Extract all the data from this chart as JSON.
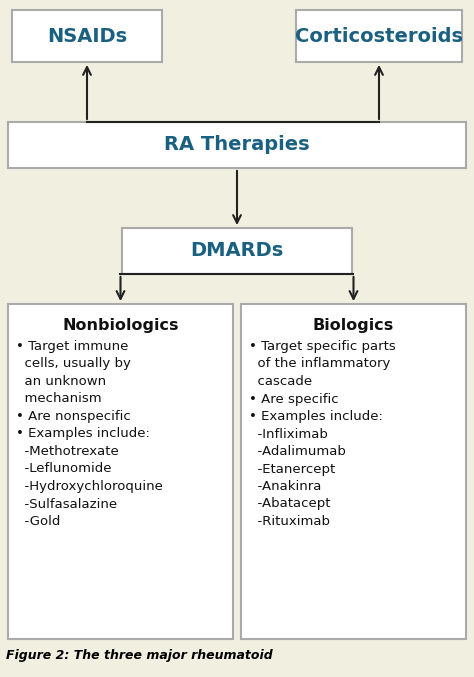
{
  "bg_color": "#f0efe0",
  "box_fill_nsaids": "#ffffff",
  "box_fill_cortico": "#ffffff",
  "box_fill_ra": "#ffffff",
  "box_fill_dmards": "#ffffff",
  "box_fill_nonbio": "#ffffff",
  "box_fill_bio": "#ffffff",
  "box_edge_color": "#aaaaaa",
  "text_color_title": "#1a6080",
  "text_color_body": "#111111",
  "arrow_color": "#222222",
  "nsaids_label": "NSAIDs",
  "cortico_label": "Corticosteroids",
  "ra_label": "RA Therapies",
  "dmards_label": "DMARDs",
  "nonbio_label": "Nonbiologics",
  "bio_label": "Biologics",
  "nonbio_lines": [
    "• Target immune",
    "  cells, usually by",
    "  an unknown",
    "  mechanism",
    "• Are nonspecific",
    "• Examples include:",
    "  -Methotrexate",
    "  -Leflunomide",
    "  -Hydroxychloroquine",
    "  -Sulfasalazine",
    "  -Gold"
  ],
  "bio_lines": [
    "• Target specific parts",
    "  of the inflammatory",
    "  cascade",
    "• Are specific",
    "• Examples include:",
    "  -Infliximab",
    "  -Adalimumab",
    "  -Etanercept",
    "  -Anakinra",
    "  -Abatacept",
    "  -Rituximab"
  ],
  "caption": "Figure 2: The three major rheumatoid",
  "fig_width": 4.74,
  "fig_height": 6.77,
  "dpi": 100
}
